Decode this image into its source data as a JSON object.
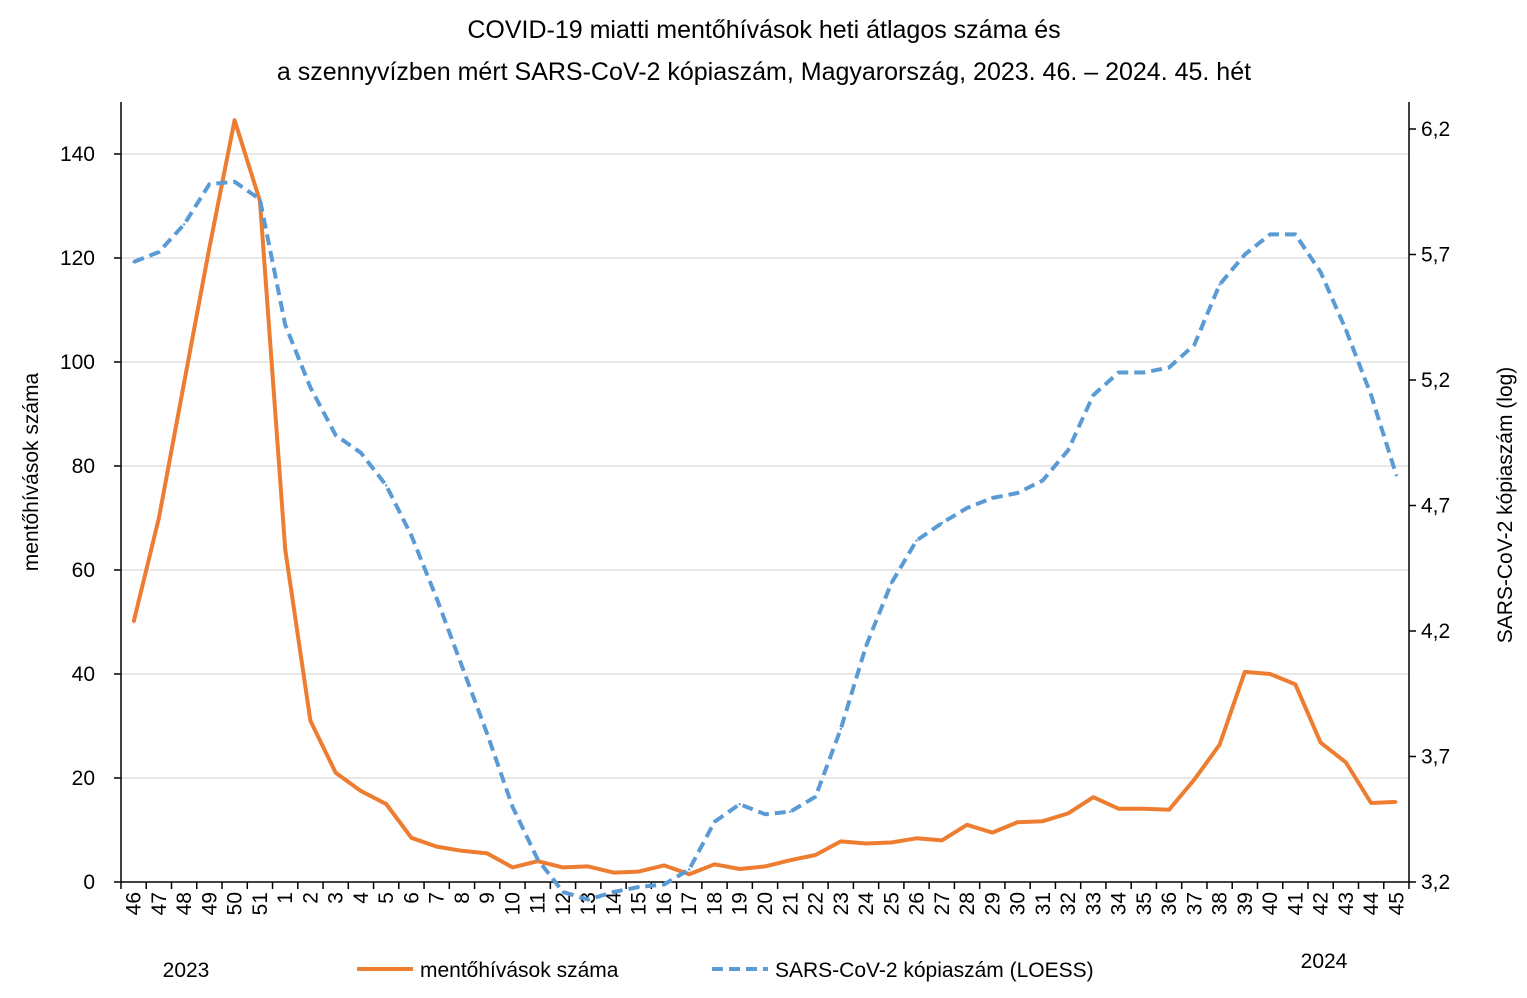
{
  "chart_data": {
    "type": "line",
    "title_line1": "COVID-19 miatti mentőhívások heti átlagos száma és",
    "title_line2": "a szennyvízben mért SARS-CoV-2 kópiaszám, Magyarország, 2023. 46. – 2024. 45. hét",
    "ylabel_left": "mentőhívások száma",
    "ylabel_right": "SARS-CoV-2 kópiaszám (log)",
    "ylim_left": [
      0,
      150
    ],
    "yticks_left": [
      "0",
      "20",
      "40",
      "60",
      "80",
      "100",
      "120",
      "140"
    ],
    "ylim_right": [
      3.2,
      6.3
    ],
    "yticks_right": [
      "3,2",
      "3,7",
      "4,2",
      "4,7",
      "5,2",
      "5,7",
      "6,2"
    ],
    "categories": [
      "46",
      "47",
      "48",
      "49",
      "50",
      "51",
      "1",
      "2",
      "3",
      "4",
      "5",
      "6",
      "7",
      "8",
      "9",
      "10",
      "11",
      "12",
      "13",
      "14",
      "15",
      "16",
      "17",
      "18",
      "19",
      "20",
      "21",
      "22",
      "23",
      "24",
      "25",
      "26",
      "27",
      "28",
      "29",
      "30",
      "31",
      "32",
      "33",
      "34",
      "35",
      "36",
      "37",
      "38",
      "39",
      "40",
      "41",
      "42",
      "43",
      "44",
      "45"
    ],
    "year_labels": {
      "start": "2023",
      "end": "2024"
    },
    "series": [
      {
        "name": "mentőhívások száma",
        "axis": "left",
        "color": "#ED7D31",
        "style": "solid",
        "values": [
          50,
          70,
          96,
          122,
          146.5,
          131,
          64,
          31,
          21,
          17.5,
          15,
          8.5,
          6.8,
          6,
          5.5,
          2.8,
          4,
          2.8,
          3,
          1.8,
          2,
          3.2,
          1.5,
          3.4,
          2.5,
          3,
          4.2,
          5.2,
          7.8,
          7.4,
          7.6,
          8.4,
          8,
          11,
          9.5,
          11.5,
          11.7,
          13.2,
          16.3,
          14.1,
          14.1,
          13.9,
          19.7,
          26.4,
          40.4,
          40,
          38,
          26.8,
          23,
          15.2,
          15.4
        ]
      },
      {
        "name": "SARS-CoV-2 kópiaszám (LOESS)",
        "axis": "right",
        "color": "#5B9BD5",
        "style": "dashed",
        "values": [
          5.67,
          5.71,
          5.82,
          5.98,
          5.99,
          5.92,
          5.42,
          5.17,
          4.98,
          4.91,
          4.78,
          4.58,
          4.33,
          4.06,
          3.79,
          3.5,
          3.29,
          3.16,
          3.13,
          3.16,
          3.18,
          3.19,
          3.25,
          3.44,
          3.51,
          3.47,
          3.48,
          3.54,
          3.81,
          4.14,
          4.39,
          4.56,
          4.63,
          4.69,
          4.73,
          4.75,
          4.8,
          4.92,
          5.14,
          5.23,
          5.23,
          5.25,
          5.34,
          5.58,
          5.7,
          5.78,
          5.78,
          5.63,
          5.4,
          5.14,
          4.82
        ]
      }
    ],
    "legend": [
      "mentőhívások száma",
      "SARS-CoV-2 kópiaszám (LOESS)"
    ],
    "grid": true,
    "legend_position": "bottom"
  }
}
